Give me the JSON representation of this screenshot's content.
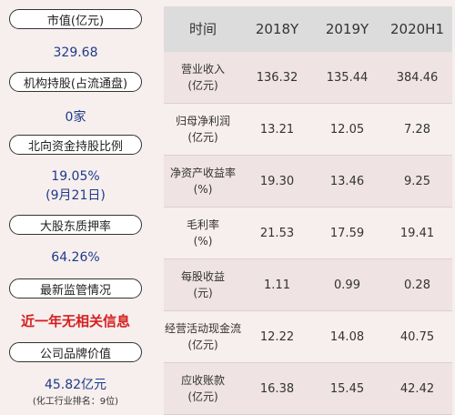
{
  "left_panel": {
    "items": [
      {
        "label": "市值(亿元)",
        "value": "329.68"
      },
      {
        "label": "机构持股(占流通盘)",
        "value": "0家"
      },
      {
        "label": "北向资金持股比例",
        "value": "19.05%",
        "sub": "(9月21日)"
      },
      {
        "label": "大股东质押率",
        "value": "64.26%"
      },
      {
        "label": "最新监管情况",
        "value": "近一年无相关信息"
      },
      {
        "label": "公司品牌价值",
        "value": "45.82亿元",
        "sub": "(化工行业排名：9位)"
      }
    ]
  },
  "table": {
    "headers": [
      "时间",
      "2018Y",
      "2019Y",
      "2020H1"
    ],
    "rows": [
      {
        "name1": "营业收入",
        "name2": "(亿元)",
        "v": [
          "136.32",
          "135.44",
          "384.46"
        ]
      },
      {
        "name1": "归母净利润",
        "name2": "(亿元)",
        "v": [
          "13.21",
          "12.05",
          "7.28"
        ]
      },
      {
        "name1": "净资产收益率",
        "name2": "(%)",
        "v": [
          "19.30",
          "13.46",
          "9.25"
        ]
      },
      {
        "name1": "毛利率",
        "name2": "(%)",
        "v": [
          "21.53",
          "17.59",
          "19.41"
        ]
      },
      {
        "name1": "每股收益",
        "name2": "(元)",
        "v": [
          "1.11",
          "0.99",
          "0.28"
        ]
      },
      {
        "name1": "经营活动现金流",
        "name2": "(亿元)",
        "v": [
          "12.22",
          "14.08",
          "40.75"
        ]
      },
      {
        "name1": "应收账款",
        "name2": "(亿元)",
        "v": [
          "16.38",
          "15.45",
          "42.42"
        ]
      }
    ]
  }
}
